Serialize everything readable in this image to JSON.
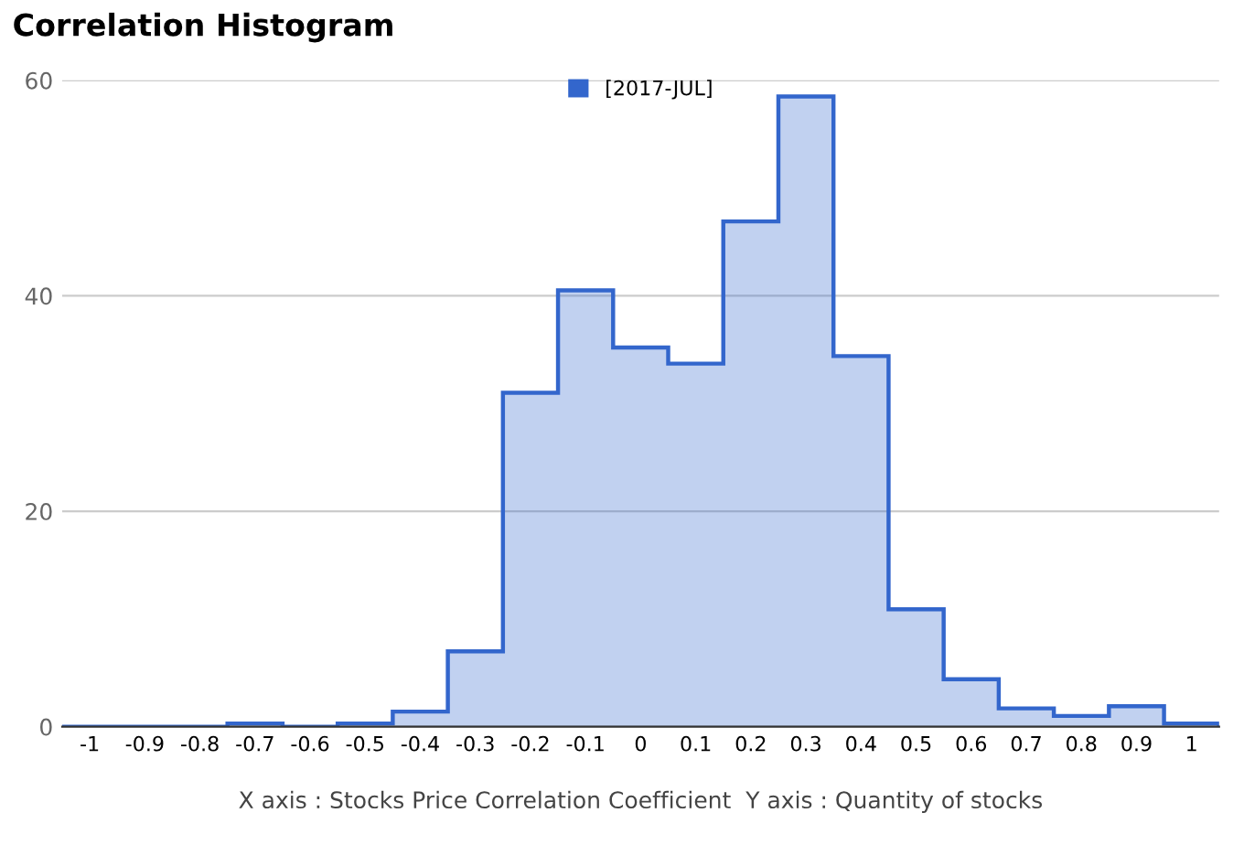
{
  "chart_data": {
    "type": "histogram",
    "title": "Correlation Histogram",
    "xlabel": "X axis : Stocks Price Correlation Coefficient  Y axis : Quantity of stocks",
    "bins": [
      -1.05,
      -0.95,
      -0.85,
      -0.75,
      -0.65,
      -0.55,
      -0.45,
      -0.35,
      -0.25,
      -0.15,
      -0.05,
      0.05,
      0.15,
      0.25,
      0.35,
      0.45,
      0.55,
      0.65,
      0.75,
      0.85,
      0.95,
      1.05
    ],
    "series": [
      {
        "name": "[2017-JUL]",
        "color": "#3366cc",
        "values": [
          0,
          0,
          0,
          0.3,
          0,
          0.3,
          1.4,
          7,
          31,
          40.5,
          35.2,
          33.7,
          46.9,
          58.5,
          34.4,
          10.9,
          4.4,
          1.7,
          1,
          1.9,
          0.3
        ]
      }
    ],
    "xlim": [
      -1.05,
      1.05
    ],
    "ylim": [
      0,
      60
    ],
    "xticks": [
      -1,
      -0.9,
      -0.8,
      -0.7,
      -0.6,
      -0.5,
      -0.4,
      -0.3,
      -0.2,
      -0.1,
      0,
      0.1,
      0.2,
      0.3,
      0.4,
      0.5,
      0.6,
      0.7,
      0.8,
      0.9,
      1
    ],
    "yticks": [
      0,
      20,
      40,
      60
    ],
    "grid": "y",
    "legend": "top"
  }
}
